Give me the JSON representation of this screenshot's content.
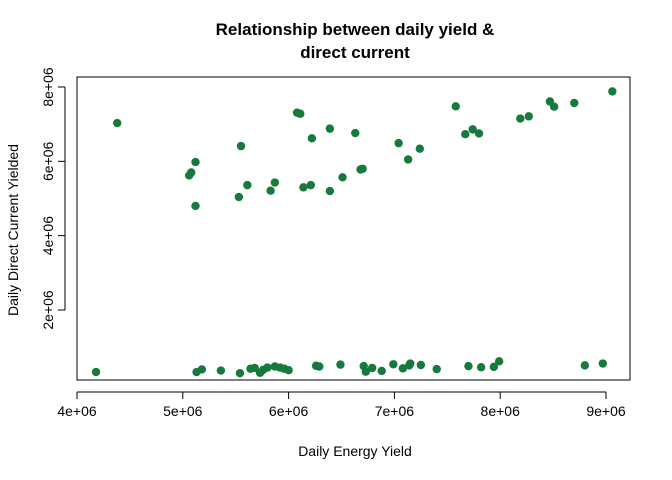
{
  "chart_data": {
    "type": "scatter",
    "title_lines": [
      "Relationship between daily yield &",
      "direct current"
    ],
    "xlabel": "Daily Energy Yield",
    "ylabel": "Daily Direct Current Yielded",
    "xlim": [
      4000000,
      9200000
    ],
    "ylim": [
      0,
      8000000
    ],
    "x_ticks": [
      4000000,
      5000000,
      6000000,
      7000000,
      8000000,
      9000000
    ],
    "x_tick_labels": [
      "4e+06",
      "5e+06",
      "6e+06",
      "7e+06",
      "8e+06",
      "9e+06"
    ],
    "y_ticks": [
      2000000,
      4000000,
      6000000,
      8000000
    ],
    "y_tick_labels": [
      "2e+06",
      "4e+06",
      "6e+06",
      "8e+06"
    ],
    "grid": false,
    "point_color": "#157a3b",
    "points": [
      [
        4180000,
        330000
      ],
      [
        4380000,
        7030000
      ],
      [
        5060000,
        5620000
      ],
      [
        5080000,
        5700000
      ],
      [
        5120000,
        5980000
      ],
      [
        5120000,
        4800000
      ],
      [
        5130000,
        330000
      ],
      [
        5180000,
        400000
      ],
      [
        5360000,
        370000
      ],
      [
        5530000,
        5040000
      ],
      [
        5550000,
        6410000
      ],
      [
        5540000,
        300000
      ],
      [
        5610000,
        5360000
      ],
      [
        5640000,
        420000
      ],
      [
        5680000,
        440000
      ],
      [
        5730000,
        310000
      ],
      [
        5760000,
        390000
      ],
      [
        5800000,
        450000
      ],
      [
        5830000,
        5210000
      ],
      [
        5870000,
        5430000
      ],
      [
        5870000,
        480000
      ],
      [
        5920000,
        450000
      ],
      [
        5960000,
        420000
      ],
      [
        6000000,
        380000
      ],
      [
        6080000,
        7310000
      ],
      [
        6110000,
        7280000
      ],
      [
        6140000,
        5300000
      ],
      [
        6210000,
        5360000
      ],
      [
        6220000,
        6620000
      ],
      [
        6260000,
        500000
      ],
      [
        6290000,
        480000
      ],
      [
        6390000,
        6880000
      ],
      [
        6390000,
        5200000
      ],
      [
        6490000,
        530000
      ],
      [
        6510000,
        5570000
      ],
      [
        6630000,
        6760000
      ],
      [
        6680000,
        5780000
      ],
      [
        6700000,
        5800000
      ],
      [
        6710000,
        490000
      ],
      [
        6730000,
        340000
      ],
      [
        6790000,
        440000
      ],
      [
        6880000,
        360000
      ],
      [
        6990000,
        540000
      ],
      [
        7040000,
        6490000
      ],
      [
        7080000,
        430000
      ],
      [
        7130000,
        6050000
      ],
      [
        7140000,
        510000
      ],
      [
        7150000,
        560000
      ],
      [
        7240000,
        6340000
      ],
      [
        7250000,
        520000
      ],
      [
        7400000,
        410000
      ],
      [
        7580000,
        7480000
      ],
      [
        7670000,
        6730000
      ],
      [
        7700000,
        490000
      ],
      [
        7740000,
        6860000
      ],
      [
        7800000,
        6750000
      ],
      [
        7820000,
        460000
      ],
      [
        7940000,
        470000
      ],
      [
        7990000,
        620000
      ],
      [
        8190000,
        7150000
      ],
      [
        8270000,
        7210000
      ],
      [
        8470000,
        7610000
      ],
      [
        8510000,
        7470000
      ],
      [
        8700000,
        7570000
      ],
      [
        8800000,
        510000
      ],
      [
        8970000,
        560000
      ],
      [
        9060000,
        7880000
      ]
    ]
  }
}
